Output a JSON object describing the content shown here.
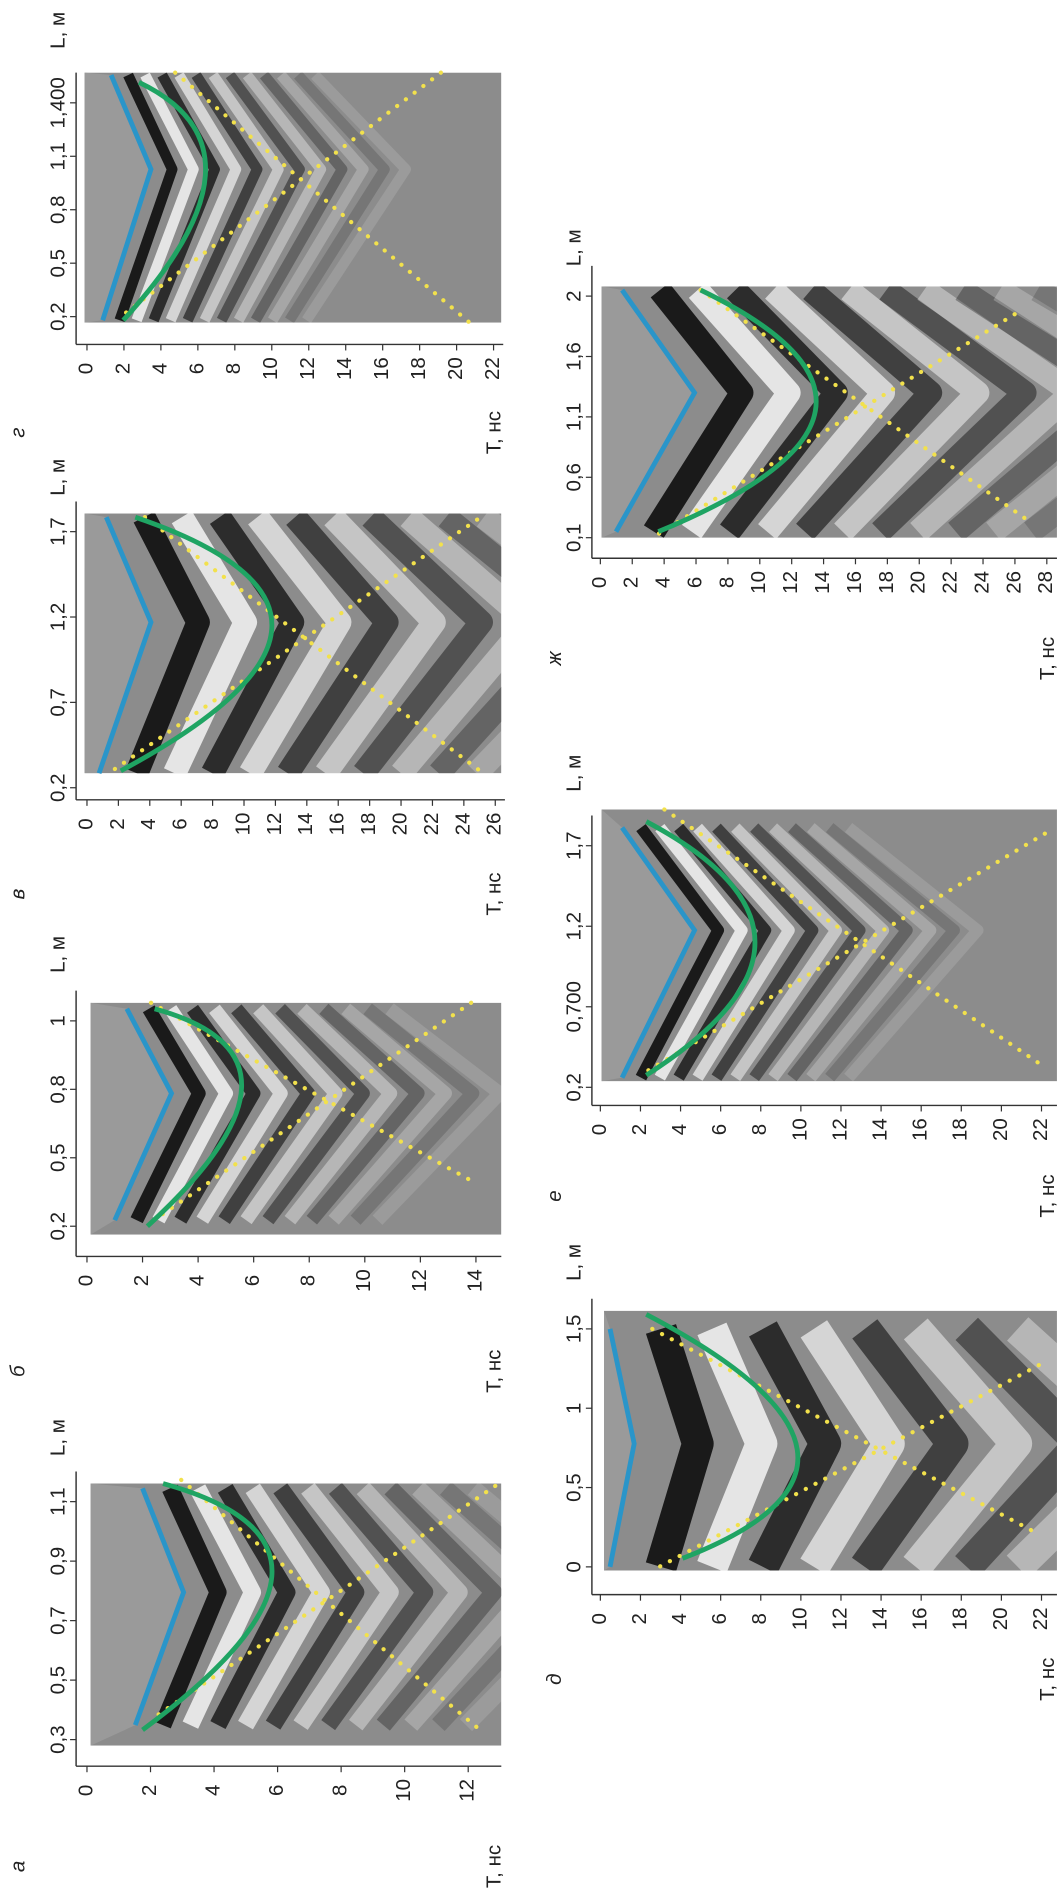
{
  "panels": [
    {
      "label": "а",
      "t_axis_title": "Т, нс",
      "l_axis_title": "L, м",
      "t_ticks": [
        0,
        2,
        4,
        6,
        8,
        10,
        12
      ],
      "l_ticks": [
        "0,3",
        "0,5",
        "0,7",
        "0,9",
        "1,1"
      ]
    },
    {
      "label": "б",
      "t_axis_title": "Т, нс",
      "l_axis_title": "L, м",
      "t_ticks": [
        0,
        2,
        4,
        6,
        8,
        10,
        12,
        14
      ],
      "l_ticks": [
        "0,2",
        "0,5",
        "0,8",
        "1"
      ]
    },
    {
      "label": "в",
      "t_axis_title": "Т, нс",
      "l_axis_title": "L, м",
      "t_ticks": [
        0,
        2,
        4,
        6,
        8,
        10,
        12,
        14,
        16,
        18,
        20,
        22,
        24,
        26
      ],
      "l_ticks": [
        "0,2",
        "0,7",
        "1,2",
        "1,7"
      ]
    },
    {
      "label": "г",
      "t_axis_title": "Т, нс",
      "l_axis_title": "L, м",
      "t_ticks": [
        0,
        2,
        4,
        6,
        8,
        10,
        12,
        14,
        16,
        18,
        20,
        22
      ],
      "l_ticks": [
        "0,2",
        "0,5",
        "0,8",
        "1,1",
        "1,400"
      ]
    },
    {
      "label": "д",
      "t_axis_title": "Т, нс",
      "l_axis_title": "L, м",
      "t_ticks": [
        0,
        2,
        4,
        6,
        8,
        10,
        12,
        14,
        16,
        18,
        20,
        22
      ],
      "l_ticks": [
        "0",
        "0,5",
        "1",
        "1,5"
      ]
    },
    {
      "label": "е",
      "t_axis_title": "Т, нс",
      "l_axis_title": "L, м",
      "t_ticks": [
        0,
        2,
        4,
        6,
        8,
        10,
        12,
        14,
        16,
        18,
        20,
        22
      ],
      "l_ticks": [
        "0,2",
        "0,700",
        "1,2",
        "1,7"
      ]
    },
    {
      "label": "ж",
      "t_axis_title": "Т, нс",
      "l_axis_title": "L, м",
      "t_ticks": [
        0,
        2,
        4,
        6,
        8,
        10,
        12,
        14,
        16,
        18,
        20,
        22,
        24,
        26,
        28
      ],
      "l_ticks": [
        "0,1",
        "0,6",
        "1,1",
        "1,6",
        "2"
      ]
    }
  ]
}
